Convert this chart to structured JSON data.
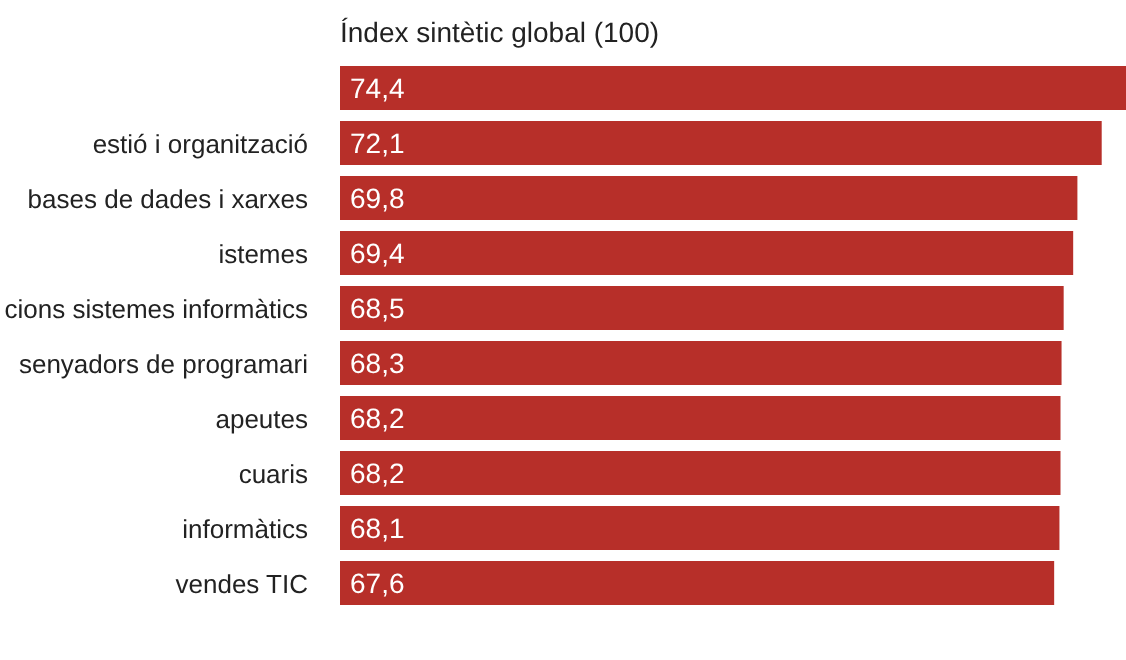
{
  "chart_data": {
    "type": "bar",
    "orientation": "horizontal",
    "title": "Índex sintètic global (100)",
    "categories": [
      null,
      "estió i organització",
      "bases de dades i xarxes",
      "istemes",
      "cions sistemes informàtics",
      "senyadors de programari",
      "apeutes",
      "cuaris",
      "informàtics",
      "vendes TIC"
    ],
    "values": [
      74.4,
      72.1,
      69.8,
      69.4,
      68.5,
      68.3,
      68.2,
      68.2,
      68.1,
      67.6
    ],
    "value_labels": [
      "74,4",
      "72,1",
      "69,8",
      "69,4",
      "68,5",
      "68,3",
      "68,2",
      "68,2",
      "68,1",
      "67,6"
    ],
    "color": "#b72f29"
  }
}
